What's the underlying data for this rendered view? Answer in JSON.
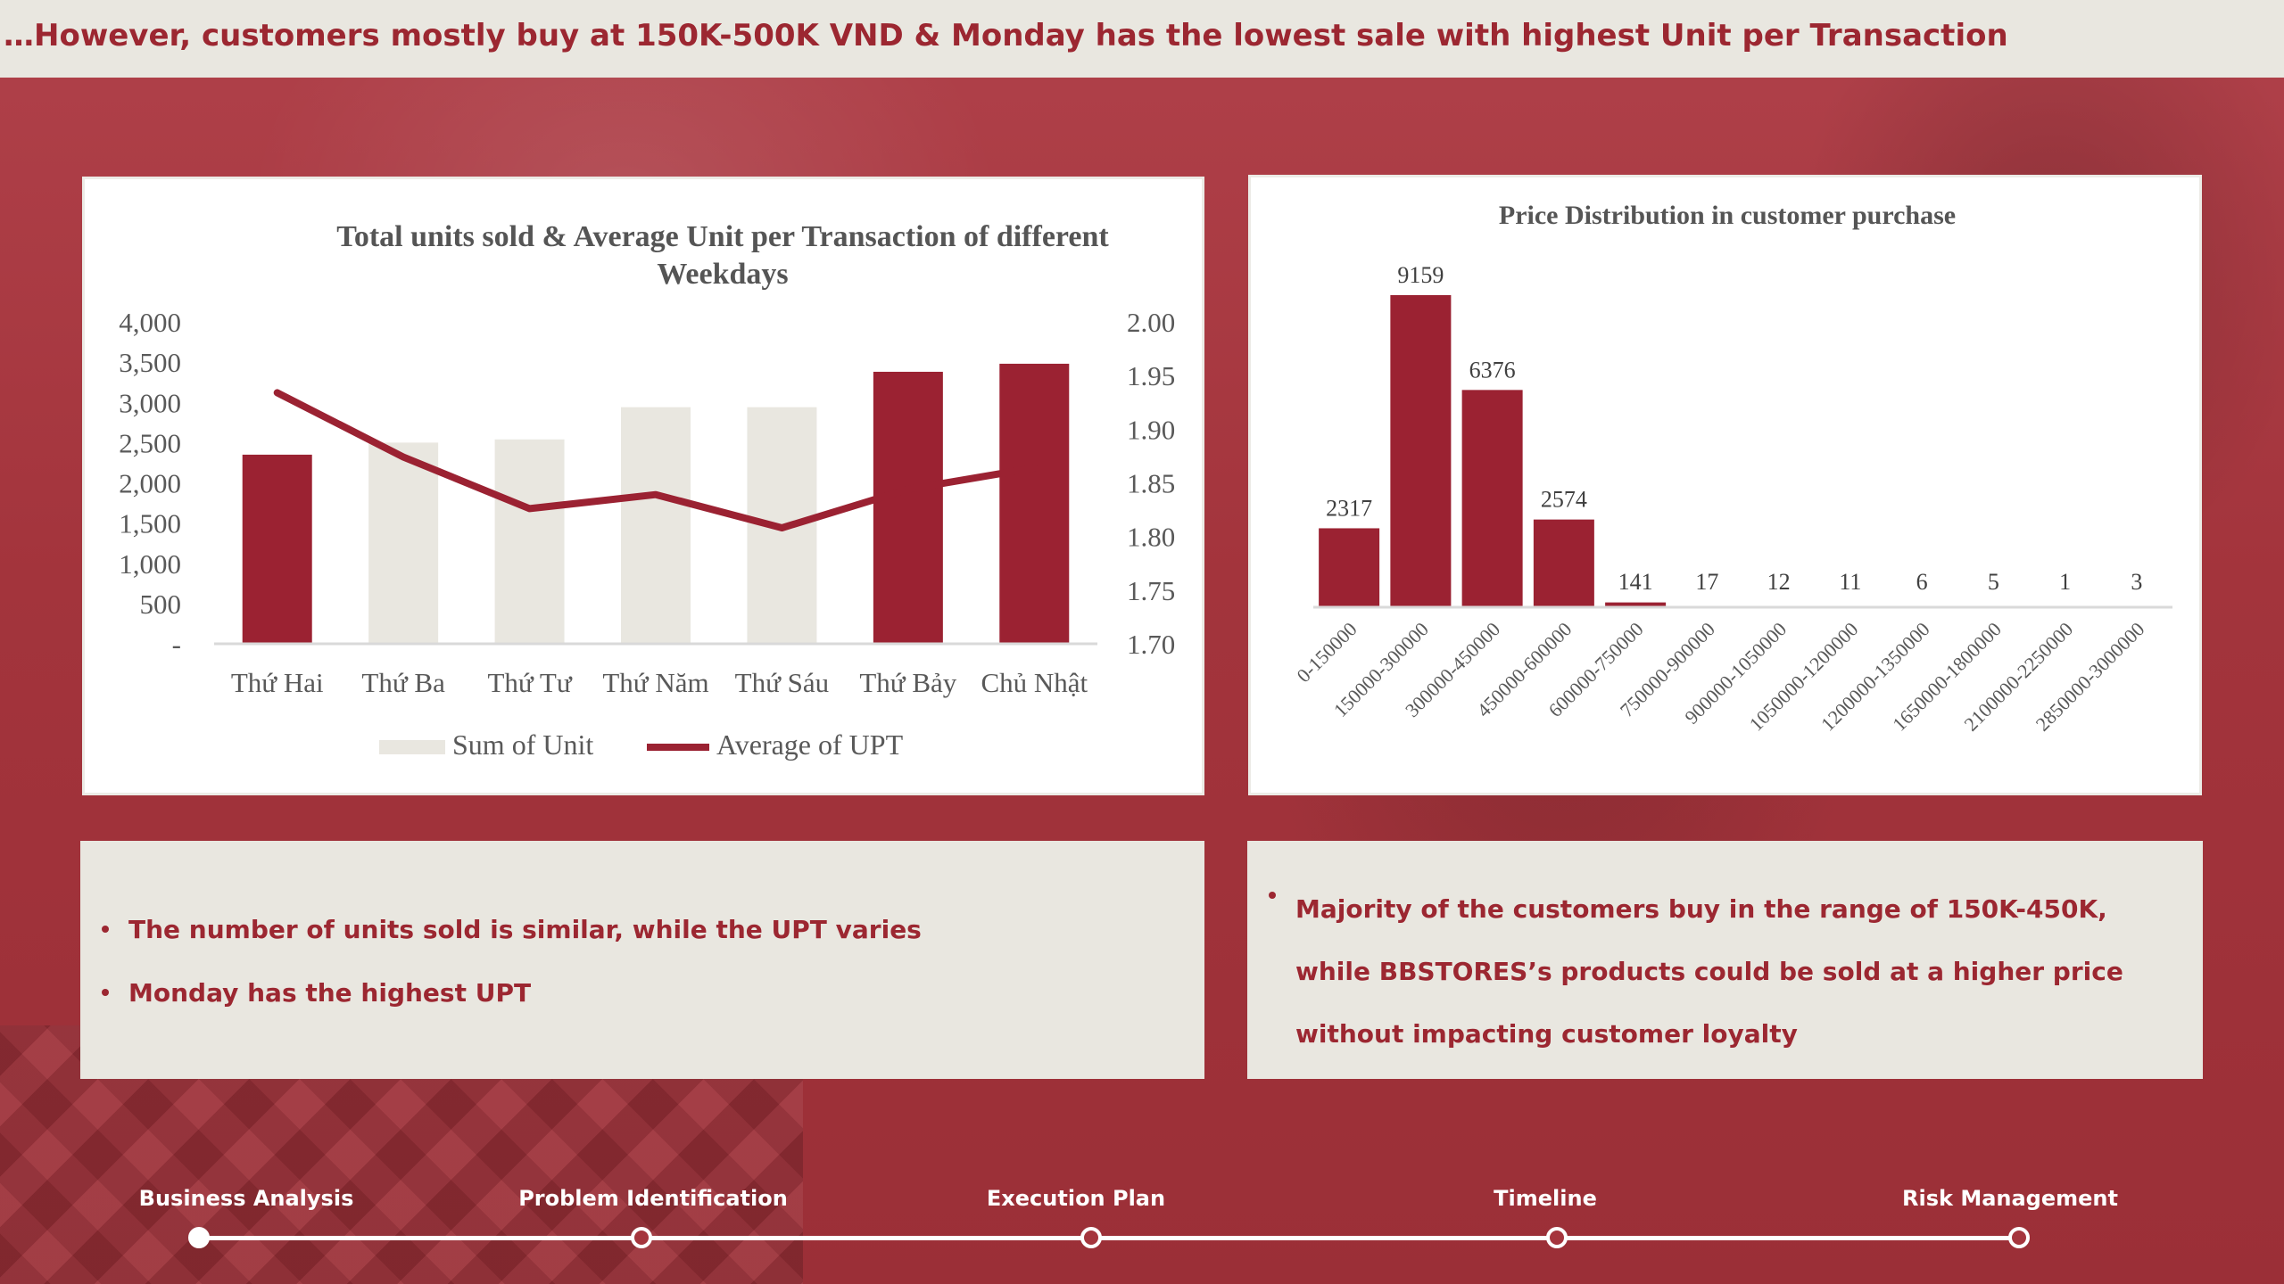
{
  "header": {
    "title": "…However, customers mostly buy at 150K-500K VND & Monday has the lowest sale with highest Unit per Transaction"
  },
  "chart_data": [
    {
      "type": "bar+line",
      "title": "Total units sold & Average Unit per Transaction of different Weekdays",
      "categories": [
        "Thứ Hai",
        "Thứ Ba",
        "Thứ Tư",
        "Thứ Năm",
        "Thứ Sáu",
        "Thứ Bảy",
        "Chủ Nhật"
      ],
      "series": [
        {
          "name": "Sum of Unit",
          "type": "bar",
          "axis": "left",
          "values": [
            2350,
            2500,
            2540,
            2940,
            2940,
            3380,
            3480
          ],
          "bar_colors": [
            "#9b2232",
            "#e9e7e0",
            "#e9e7e0",
            "#e9e7e0",
            "#e9e7e0",
            "#9b2232",
            "#9b2232"
          ]
        },
        {
          "name": "Average of UPT",
          "type": "line",
          "axis": "right",
          "values": [
            1.934,
            1.874,
            1.826,
            1.839,
            1.808,
            1.844,
            1.864
          ],
          "color": "#9b2232"
        }
      ],
      "y_left": {
        "min": 0,
        "max": 4000,
        "ticks": [
          "-",
          "500",
          "1,000",
          "1,500",
          "2,000",
          "2,500",
          "3,000",
          "3,500",
          "4,000"
        ]
      },
      "y_right": {
        "min": 1.7,
        "max": 2.0,
        "ticks": [
          "1.70",
          "1.75",
          "1.80",
          "1.85",
          "1.90",
          "1.95",
          "2.00"
        ]
      },
      "legend": "bottom",
      "grid": false
    },
    {
      "type": "bar",
      "title": "Price Distribution in customer purchase",
      "categories": [
        "0-150000",
        "150000-300000",
        "300000-450000",
        "450000-600000",
        "600000-750000",
        "750000-900000",
        "900000-1050000",
        "1050000-1200000",
        "1200000-1350000",
        "1650000-1800000",
        "2100000-2250000",
        "2850000-3000000"
      ],
      "values": [
        2317,
        9159,
        6376,
        2574,
        141,
        17,
        12,
        11,
        6,
        5,
        1,
        3
      ],
      "data_labels": [
        "2317",
        "9159",
        "6376",
        "2574",
        "141",
        "17",
        "12",
        "11",
        "6",
        "5",
        "1",
        "3"
      ],
      "ylim": [
        0,
        9159
      ],
      "color": "#9b2232",
      "grid": false
    }
  ],
  "notes": {
    "left": [
      "The number of units sold is similar, while the UPT varies",
      "Monday has the highest UPT"
    ],
    "right": [
      "Majority of the customers buy in the range of 150K-450K, while BBSTORES’s products could be sold at a higher price without impacting customer loyalty"
    ]
  },
  "timeline": {
    "steps": [
      {
        "label": "Business Analysis",
        "state": "current"
      },
      {
        "label": "Problem Identification",
        "state": "upcoming"
      },
      {
        "label": "Execution Plan",
        "state": "upcoming"
      },
      {
        "label": "Timeline",
        "state": "upcoming"
      },
      {
        "label": "Risk Management",
        "state": "upcoming"
      }
    ]
  }
}
